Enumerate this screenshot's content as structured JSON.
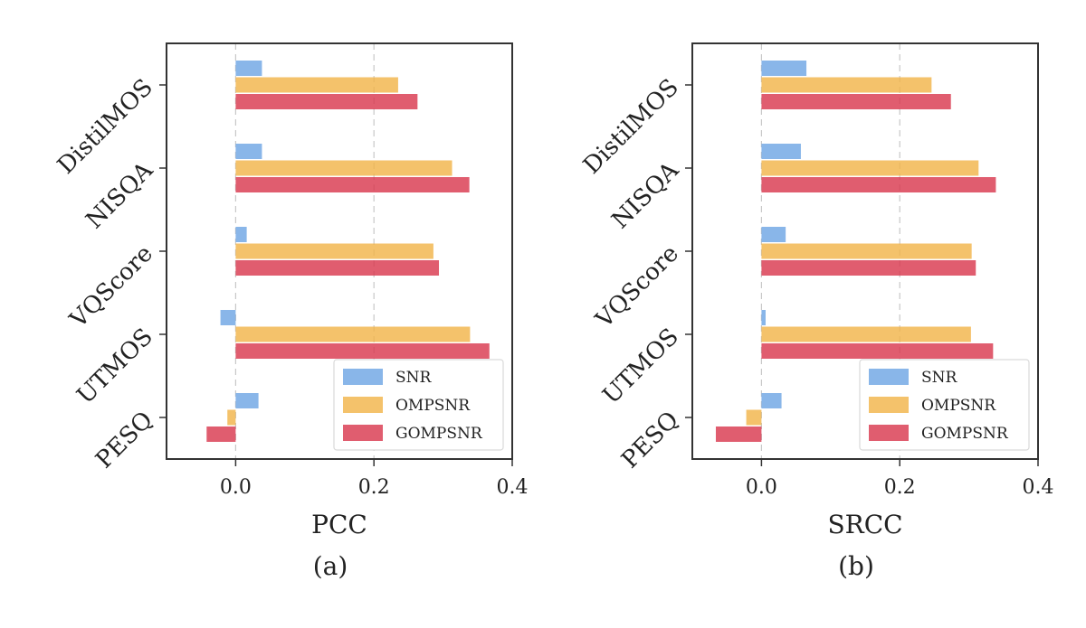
{
  "chart_data": [
    {
      "type": "bar",
      "orientation": "horizontal",
      "categories": [
        "DistilMOS",
        "NISQA",
        "VQScore",
        "UTMOS",
        "PESQ"
      ],
      "series": [
        {
          "name": "SNR",
          "color": "#6fa6e4",
          "values": [
            0.038,
            0.038,
            0.016,
            -0.022,
            0.033
          ]
        },
        {
          "name": "OMPSNR",
          "color": "#f2b54a",
          "values": [
            0.235,
            0.313,
            0.286,
            0.339,
            -0.012
          ]
        },
        {
          "name": "GOMPSNR",
          "color": "#d9394f",
          "values": [
            0.263,
            0.338,
            0.294,
            0.367,
            -0.042
          ]
        }
      ],
      "xlabel": "PCC",
      "xlim": [
        -0.1,
        0.4
      ],
      "xticks": [
        0.0,
        0.2,
        0.4
      ],
      "xtick_labels": [
        "0.0",
        "0.2",
        "0.4"
      ],
      "grid": "x-dashed",
      "legend": "lower-right",
      "caption": "(a)"
    },
    {
      "type": "bar",
      "orientation": "horizontal",
      "categories": [
        "DistilMOS",
        "NISQA",
        "VQScore",
        "UTMOS",
        "PESQ"
      ],
      "series": [
        {
          "name": "SNR",
          "color": "#6fa6e4",
          "values": [
            0.065,
            0.057,
            0.035,
            0.006,
            0.029
          ]
        },
        {
          "name": "OMPSNR",
          "color": "#f2b54a",
          "values": [
            0.246,
            0.314,
            0.304,
            0.303,
            -0.022
          ]
        },
        {
          "name": "GOMPSNR",
          "color": "#d9394f",
          "values": [
            0.274,
            0.339,
            0.31,
            0.335,
            -0.066
          ]
        }
      ],
      "xlabel": "SRCC",
      "xlim": [
        -0.1,
        0.4
      ],
      "xticks": [
        0.0,
        0.2,
        0.4
      ],
      "xtick_labels": [
        "0.0",
        "0.2",
        "0.4"
      ],
      "grid": "x-dashed",
      "legend": "lower-right",
      "caption": "(b)"
    }
  ]
}
